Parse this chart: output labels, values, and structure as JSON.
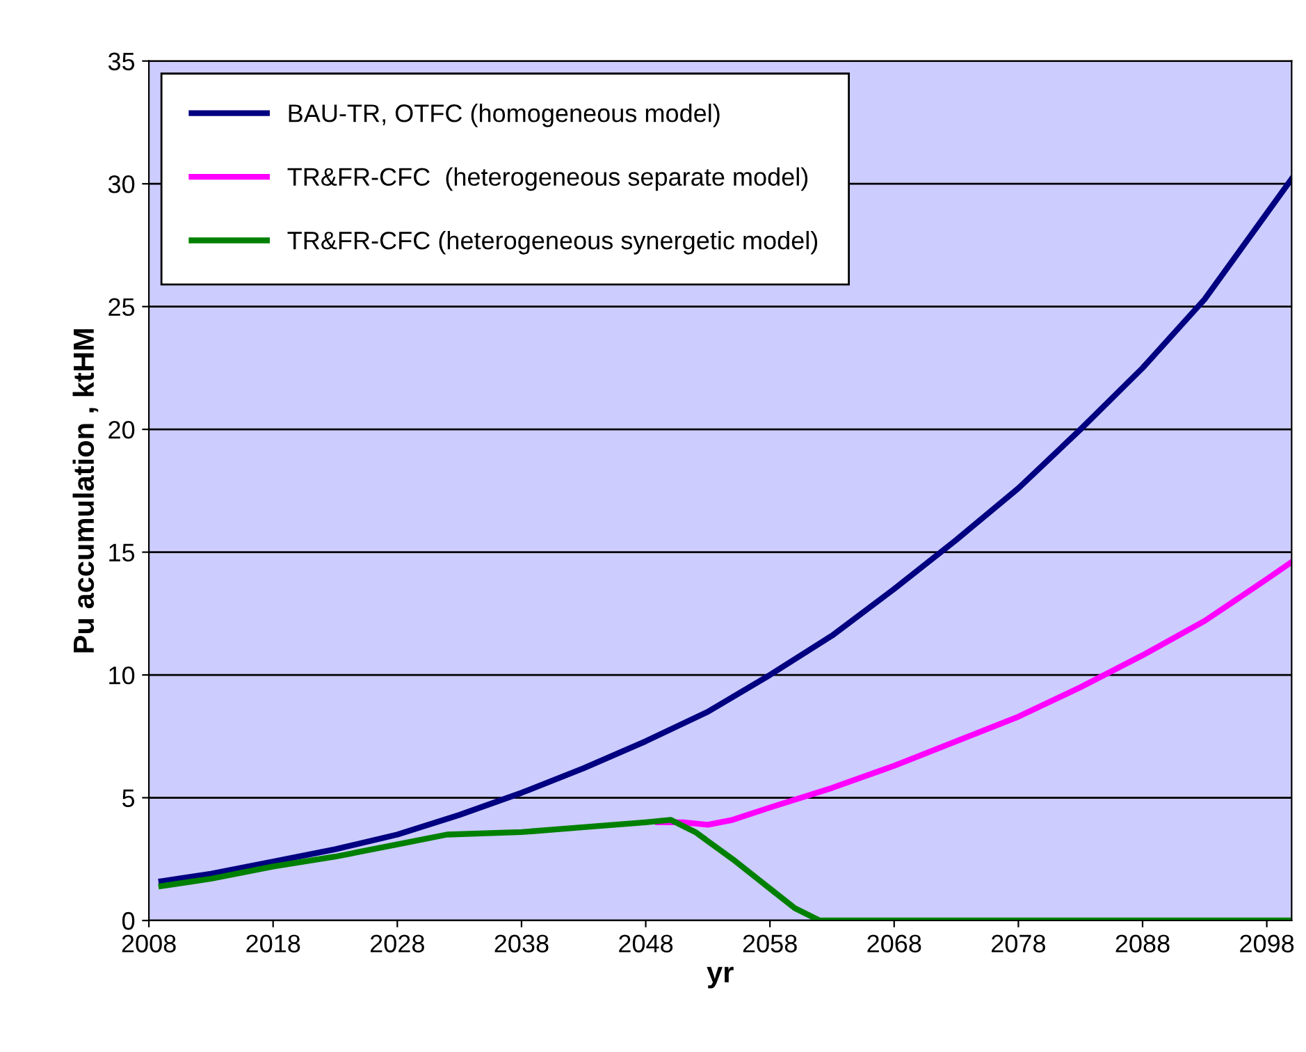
{
  "chart_data": {
    "type": "line",
    "xlabel": "yr",
    "ylabel": "Pu accumulation , ktHM",
    "xlim": [
      2008,
      2100
    ],
    "xticks": [
      2008,
      2018,
      2028,
      2038,
      2048,
      2058,
      2068,
      2078,
      2088,
      2098
    ],
    "ylim": [
      0,
      35
    ],
    "yticks": [
      0,
      5,
      10,
      15,
      20,
      25,
      30,
      35
    ],
    "grid": "y",
    "legend": "top left",
    "marker": "none",
    "line_style": "solid",
    "series": [
      {
        "name": "BAU-TR, OTFC (homogeneous model)",
        "color": "#000080",
        "x": [
          2009,
          2013,
          2018,
          2023,
          2028,
          2033,
          2038,
          2043,
          2048,
          2053,
          2058,
          2063,
          2068,
          2073,
          2078,
          2083,
          2088,
          2093,
          2098,
          2100
        ],
        "values": [
          1.6,
          1.9,
          2.4,
          2.9,
          3.5,
          4.3,
          5.2,
          6.2,
          7.3,
          8.5,
          10.0,
          11.6,
          13.5,
          15.5,
          17.6,
          20.0,
          22.5,
          25.3,
          28.8,
          30.2
        ]
      },
      {
        "name": "TR&FR-CFC  (heterogeneous separate model)",
        "color": "#ff00ff",
        "x": [
          2049,
          2051,
          2053,
          2055,
          2058,
          2063,
          2068,
          2073,
          2078,
          2083,
          2088,
          2093,
          2098,
          2100
        ],
        "values": [
          4.0,
          4.0,
          3.9,
          4.1,
          4.6,
          5.4,
          6.3,
          7.3,
          8.3,
          9.5,
          10.8,
          12.2,
          13.9,
          14.6
        ]
      },
      {
        "name": "TR&FR-CFC (heterogeneous synergetic model)",
        "color": "#008000",
        "x": [
          2009,
          2013,
          2018,
          2023,
          2028,
          2032,
          2038,
          2043,
          2048,
          2050,
          2052,
          2055,
          2058,
          2060,
          2062,
          2070,
          2080,
          2090,
          2100
        ],
        "values": [
          1.4,
          1.7,
          2.2,
          2.6,
          3.1,
          3.5,
          3.6,
          3.8,
          4.0,
          4.1,
          3.6,
          2.5,
          1.3,
          0.5,
          0,
          0,
          0,
          0,
          0
        ]
      }
    ]
  }
}
